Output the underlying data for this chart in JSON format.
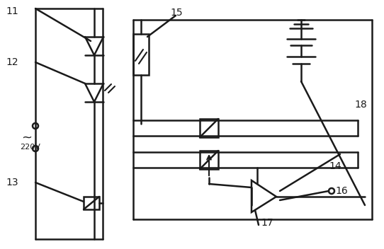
{
  "lc": "#1a1a1a",
  "lw": 1.8,
  "fig_w": 5.42,
  "fig_h": 3.52,
  "dpi": 100
}
